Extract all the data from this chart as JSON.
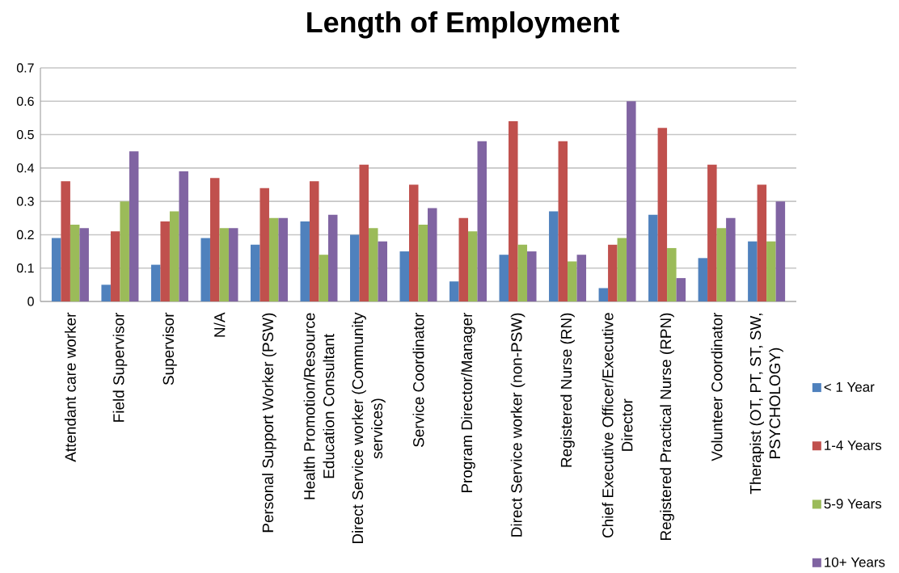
{
  "chart_data": {
    "type": "bar",
    "title": "Length of Employment",
    "categories": [
      "Attendant care worker",
      "Field Supervisor",
      "Supervisor",
      "N/A",
      "Personal Support Worker (PSW)",
      "Health Promotion/Resource Education Consultant",
      "Direct Service worker (Community services)",
      "Service Coordinator",
      "Program Director/Manager",
      "Direct Service worker (non-PSW)",
      "Registered Nurse (RN)",
      "Chief Executive Officer/Executive Director",
      "Registered Practical Nurse (RPN)",
      "Volunteer Coordinator",
      "Therapist (OT, PT, ST, SW, PSYCHOLOGY)"
    ],
    "series": [
      {
        "name": "< 1 Year",
        "color": "#4f81bd",
        "values": [
          0.19,
          0.05,
          0.11,
          0.19,
          0.17,
          0.24,
          0.2,
          0.15,
          0.06,
          0.14,
          0.27,
          0.04,
          0.26,
          0.13,
          0.18
        ]
      },
      {
        "name": "1-4 Years",
        "color": "#c0504d",
        "values": [
          0.36,
          0.21,
          0.24,
          0.37,
          0.34,
          0.36,
          0.41,
          0.35,
          0.25,
          0.54,
          0.48,
          0.17,
          0.52,
          0.41,
          0.35
        ]
      },
      {
        "name": "5-9 Years",
        "color": "#9bbb59",
        "values": [
          0.23,
          0.3,
          0.27,
          0.22,
          0.25,
          0.14,
          0.22,
          0.23,
          0.21,
          0.17,
          0.12,
          0.19,
          0.16,
          0.22,
          0.18
        ]
      },
      {
        "name": "10+ Years",
        "color": "#8064a2",
        "values": [
          0.22,
          0.45,
          0.39,
          0.22,
          0.25,
          0.26,
          0.18,
          0.28,
          0.48,
          0.15,
          0.14,
          0.6,
          0.07,
          0.25,
          0.3
        ]
      }
    ],
    "ylim": [
      0,
      0.7
    ],
    "yticks": [
      0,
      0.1,
      0.2,
      0.3,
      0.4,
      0.5,
      0.6,
      0.7
    ],
    "grid": "y",
    "legend": "right"
  }
}
